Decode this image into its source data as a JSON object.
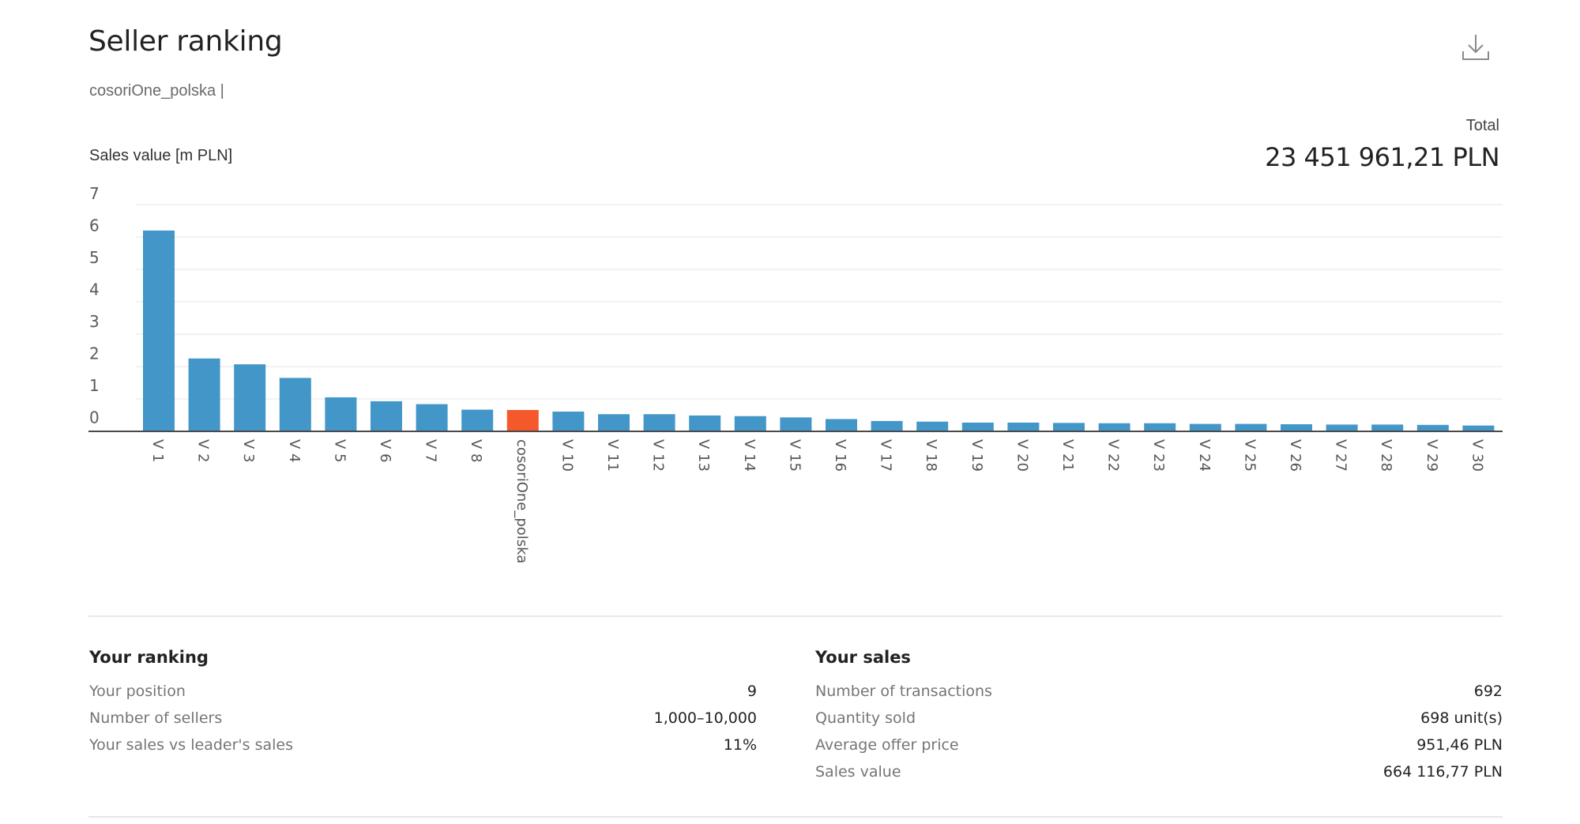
{
  "header": {
    "title": "Seller ranking",
    "subtitle": "cosoriOne_polska |",
    "download_icon": "download-icon"
  },
  "total": {
    "label": "Total",
    "value": "23 451 961,21 PLN"
  },
  "chart_data": {
    "type": "bar",
    "ylabel": "Sales value [m PLN]",
    "ylim": [
      0,
      7
    ],
    "yticks": [
      7,
      6,
      5,
      4,
      3,
      2,
      1,
      0
    ],
    "grid": true,
    "categories": [
      "V 1",
      "V 2",
      "V 3",
      "V 4",
      "V 5",
      "V 6",
      "V 7",
      "V 8",
      "cosoriOne_polska",
      "V 10",
      "V 11",
      "V 12",
      "V 13",
      "V 14",
      "V 15",
      "V 16",
      "V 17",
      "V 18",
      "V 19",
      "V 20",
      "V 21",
      "V 22",
      "V 23",
      "V 24",
      "V 25",
      "V 26",
      "V 27",
      "V 28",
      "V 29",
      "V 30"
    ],
    "values": [
      6.2,
      2.25,
      2.07,
      1.65,
      1.05,
      0.93,
      0.84,
      0.67,
      0.66,
      0.61,
      0.53,
      0.53,
      0.49,
      0.47,
      0.43,
      0.38,
      0.32,
      0.3,
      0.27,
      0.27,
      0.26,
      0.25,
      0.25,
      0.23,
      0.23,
      0.22,
      0.21,
      0.21,
      0.2,
      0.18
    ],
    "highlight_index": 8,
    "colors": {
      "bar": "#4396c8",
      "highlight": "#f4582b",
      "grid": "#e6e6e6",
      "axis": "#4a4a4a"
    }
  },
  "ranking": {
    "heading": "Your ranking",
    "rows": [
      {
        "label": "Your position",
        "value": "9"
      },
      {
        "label": "Number of sellers",
        "value": "1,000–10,000"
      },
      {
        "label": "Your sales vs leader's sales",
        "value": "11%"
      }
    ]
  },
  "sales": {
    "heading": "Your sales",
    "rows": [
      {
        "label": "Number of transactions",
        "value": "692"
      },
      {
        "label": "Quantity sold",
        "value": "698 unit(s)"
      },
      {
        "label": "Average offer price",
        "value": "951,46 PLN"
      },
      {
        "label": "Sales value",
        "value": "664 116,77 PLN"
      }
    ]
  }
}
